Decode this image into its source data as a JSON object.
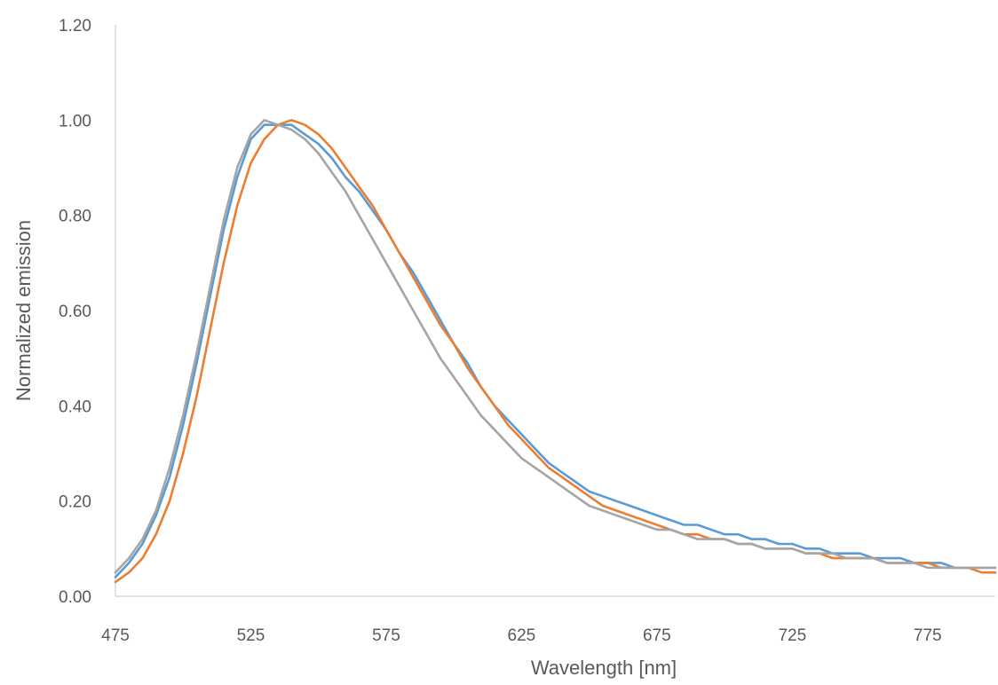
{
  "chart_data": {
    "type": "line",
    "title": "",
    "xlabel": "Wavelength [nm]",
    "ylabel": "Normalized emission",
    "xlim": [
      475,
      800
    ],
    "ylim": [
      0,
      1.2
    ],
    "x_ticks": [
      "475",
      "525",
      "575",
      "625",
      "675",
      "725",
      "775"
    ],
    "y_ticks": [
      "0.00",
      "0.20",
      "0.40",
      "0.60",
      "0.80",
      "1.00",
      "1.20"
    ],
    "grid": false,
    "legend": "none",
    "series": [
      {
        "color": "#5b9bd5",
        "x": [
          475,
          480,
          485,
          490,
          495,
          500,
          505,
          510,
          515,
          520,
          525,
          530,
          535,
          540,
          545,
          550,
          555,
          560,
          565,
          570,
          575,
          580,
          585,
          590,
          595,
          600,
          605,
          610,
          615,
          620,
          625,
          630,
          635,
          640,
          645,
          650,
          655,
          660,
          665,
          670,
          675,
          680,
          685,
          690,
          695,
          700,
          705,
          710,
          715,
          720,
          725,
          730,
          735,
          740,
          745,
          750,
          755,
          760,
          765,
          770,
          775,
          780,
          785,
          790,
          795,
          800
        ],
        "y": [
          0.04,
          0.07,
          0.11,
          0.17,
          0.25,
          0.36,
          0.49,
          0.63,
          0.77,
          0.88,
          0.96,
          0.99,
          0.99,
          0.99,
          0.97,
          0.95,
          0.92,
          0.88,
          0.85,
          0.81,
          0.77,
          0.72,
          0.68,
          0.63,
          0.58,
          0.53,
          0.49,
          0.44,
          0.4,
          0.37,
          0.34,
          0.31,
          0.28,
          0.26,
          0.24,
          0.22,
          0.21,
          0.2,
          0.19,
          0.18,
          0.17,
          0.16,
          0.15,
          0.15,
          0.14,
          0.13,
          0.13,
          0.12,
          0.12,
          0.11,
          0.11,
          0.1,
          0.1,
          0.09,
          0.09,
          0.09,
          0.08,
          0.08,
          0.08,
          0.07,
          0.07,
          0.07,
          0.06,
          0.06,
          0.06,
          0.06
        ]
      },
      {
        "color": "#ed7d31",
        "x": [
          475,
          480,
          485,
          490,
          495,
          500,
          505,
          510,
          515,
          520,
          525,
          530,
          535,
          540,
          545,
          550,
          555,
          560,
          565,
          570,
          575,
          580,
          585,
          590,
          595,
          600,
          605,
          610,
          615,
          620,
          625,
          630,
          635,
          640,
          645,
          650,
          655,
          660,
          665,
          670,
          675,
          680,
          685,
          690,
          695,
          700,
          705,
          710,
          715,
          720,
          725,
          730,
          735,
          740,
          745,
          750,
          755,
          760,
          765,
          770,
          775,
          780,
          785,
          790,
          795,
          800
        ],
        "y": [
          0.03,
          0.05,
          0.08,
          0.13,
          0.2,
          0.3,
          0.42,
          0.56,
          0.7,
          0.82,
          0.91,
          0.96,
          0.99,
          1.0,
          0.99,
          0.97,
          0.94,
          0.9,
          0.86,
          0.82,
          0.77,
          0.72,
          0.67,
          0.62,
          0.57,
          0.53,
          0.48,
          0.44,
          0.4,
          0.36,
          0.33,
          0.3,
          0.27,
          0.25,
          0.23,
          0.21,
          0.19,
          0.18,
          0.17,
          0.16,
          0.15,
          0.14,
          0.13,
          0.13,
          0.12,
          0.12,
          0.11,
          0.11,
          0.1,
          0.1,
          0.1,
          0.09,
          0.09,
          0.08,
          0.08,
          0.08,
          0.08,
          0.07,
          0.07,
          0.07,
          0.07,
          0.06,
          0.06,
          0.06,
          0.05,
          0.05
        ]
      },
      {
        "color": "#a5a5a5",
        "x": [
          475,
          480,
          485,
          490,
          495,
          500,
          505,
          510,
          515,
          520,
          525,
          530,
          535,
          540,
          545,
          550,
          555,
          560,
          565,
          570,
          575,
          580,
          585,
          590,
          595,
          600,
          605,
          610,
          615,
          620,
          625,
          630,
          635,
          640,
          645,
          650,
          655,
          660,
          665,
          670,
          675,
          680,
          685,
          690,
          695,
          700,
          705,
          710,
          715,
          720,
          725,
          730,
          735,
          740,
          745,
          750,
          755,
          760,
          765,
          770,
          775,
          780,
          785,
          790,
          795,
          800
        ],
        "y": [
          0.05,
          0.08,
          0.12,
          0.18,
          0.27,
          0.38,
          0.51,
          0.65,
          0.79,
          0.9,
          0.97,
          1.0,
          0.99,
          0.98,
          0.96,
          0.93,
          0.89,
          0.85,
          0.8,
          0.75,
          0.7,
          0.65,
          0.6,
          0.55,
          0.5,
          0.46,
          0.42,
          0.38,
          0.35,
          0.32,
          0.29,
          0.27,
          0.25,
          0.23,
          0.21,
          0.19,
          0.18,
          0.17,
          0.16,
          0.15,
          0.14,
          0.14,
          0.13,
          0.12,
          0.12,
          0.12,
          0.11,
          0.11,
          0.1,
          0.1,
          0.1,
          0.09,
          0.09,
          0.09,
          0.08,
          0.08,
          0.08,
          0.07,
          0.07,
          0.07,
          0.06,
          0.06,
          0.06,
          0.06,
          0.06,
          0.06
        ]
      }
    ]
  }
}
